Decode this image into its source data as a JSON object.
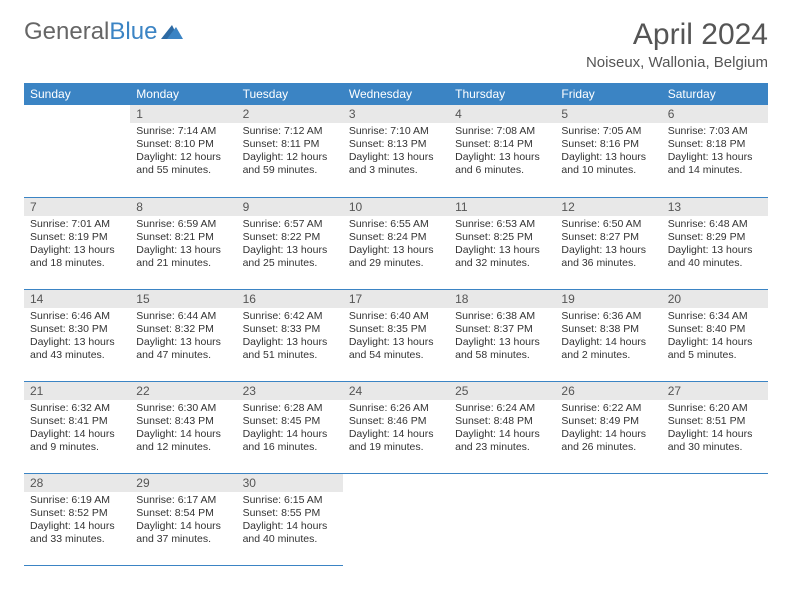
{
  "logo": {
    "general": "General",
    "blue": "Blue"
  },
  "title": "April 2024",
  "location": "Noiseux, Wallonia, Belgium",
  "colors": {
    "header_bg": "#3b84c4",
    "header_fg": "#ffffff",
    "daynum_bg": "#e8e8e8",
    "border": "#3b84c4",
    "text": "#333333",
    "title": "#555555"
  },
  "weekdays": [
    "Sunday",
    "Monday",
    "Tuesday",
    "Wednesday",
    "Thursday",
    "Friday",
    "Saturday"
  ],
  "days": {
    "1": {
      "sunrise": "7:14 AM",
      "sunset": "8:10 PM",
      "daylight": "12 hours and 55 minutes."
    },
    "2": {
      "sunrise": "7:12 AM",
      "sunset": "8:11 PM",
      "daylight": "12 hours and 59 minutes."
    },
    "3": {
      "sunrise": "7:10 AM",
      "sunset": "8:13 PM",
      "daylight": "13 hours and 3 minutes."
    },
    "4": {
      "sunrise": "7:08 AM",
      "sunset": "8:14 PM",
      "daylight": "13 hours and 6 minutes."
    },
    "5": {
      "sunrise": "7:05 AM",
      "sunset": "8:16 PM",
      "daylight": "13 hours and 10 minutes."
    },
    "6": {
      "sunrise": "7:03 AM",
      "sunset": "8:18 PM",
      "daylight": "13 hours and 14 minutes."
    },
    "7": {
      "sunrise": "7:01 AM",
      "sunset": "8:19 PM",
      "daylight": "13 hours and 18 minutes."
    },
    "8": {
      "sunrise": "6:59 AM",
      "sunset": "8:21 PM",
      "daylight": "13 hours and 21 minutes."
    },
    "9": {
      "sunrise": "6:57 AM",
      "sunset": "8:22 PM",
      "daylight": "13 hours and 25 minutes."
    },
    "10": {
      "sunrise": "6:55 AM",
      "sunset": "8:24 PM",
      "daylight": "13 hours and 29 minutes."
    },
    "11": {
      "sunrise": "6:53 AM",
      "sunset": "8:25 PM",
      "daylight": "13 hours and 32 minutes."
    },
    "12": {
      "sunrise": "6:50 AM",
      "sunset": "8:27 PM",
      "daylight": "13 hours and 36 minutes."
    },
    "13": {
      "sunrise": "6:48 AM",
      "sunset": "8:29 PM",
      "daylight": "13 hours and 40 minutes."
    },
    "14": {
      "sunrise": "6:46 AM",
      "sunset": "8:30 PM",
      "daylight": "13 hours and 43 minutes."
    },
    "15": {
      "sunrise": "6:44 AM",
      "sunset": "8:32 PM",
      "daylight": "13 hours and 47 minutes."
    },
    "16": {
      "sunrise": "6:42 AM",
      "sunset": "8:33 PM",
      "daylight": "13 hours and 51 minutes."
    },
    "17": {
      "sunrise": "6:40 AM",
      "sunset": "8:35 PM",
      "daylight": "13 hours and 54 minutes."
    },
    "18": {
      "sunrise": "6:38 AM",
      "sunset": "8:37 PM",
      "daylight": "13 hours and 58 minutes."
    },
    "19": {
      "sunrise": "6:36 AM",
      "sunset": "8:38 PM",
      "daylight": "14 hours and 2 minutes."
    },
    "20": {
      "sunrise": "6:34 AM",
      "sunset": "8:40 PM",
      "daylight": "14 hours and 5 minutes."
    },
    "21": {
      "sunrise": "6:32 AM",
      "sunset": "8:41 PM",
      "daylight": "14 hours and 9 minutes."
    },
    "22": {
      "sunrise": "6:30 AM",
      "sunset": "8:43 PM",
      "daylight": "14 hours and 12 minutes."
    },
    "23": {
      "sunrise": "6:28 AM",
      "sunset": "8:45 PM",
      "daylight": "14 hours and 16 minutes."
    },
    "24": {
      "sunrise": "6:26 AM",
      "sunset": "8:46 PM",
      "daylight": "14 hours and 19 minutes."
    },
    "25": {
      "sunrise": "6:24 AM",
      "sunset": "8:48 PM",
      "daylight": "14 hours and 23 minutes."
    },
    "26": {
      "sunrise": "6:22 AM",
      "sunset": "8:49 PM",
      "daylight": "14 hours and 26 minutes."
    },
    "27": {
      "sunrise": "6:20 AM",
      "sunset": "8:51 PM",
      "daylight": "14 hours and 30 minutes."
    },
    "28": {
      "sunrise": "6:19 AM",
      "sunset": "8:52 PM",
      "daylight": "14 hours and 33 minutes."
    },
    "29": {
      "sunrise": "6:17 AM",
      "sunset": "8:54 PM",
      "daylight": "14 hours and 37 minutes."
    },
    "30": {
      "sunrise": "6:15 AM",
      "sunset": "8:55 PM",
      "daylight": "14 hours and 40 minutes."
    }
  },
  "labels": {
    "sunrise": "Sunrise:",
    "sunset": "Sunset:",
    "daylight": "Daylight:"
  },
  "grid": {
    "start_weekday": 1,
    "num_days": 30,
    "rows": 5,
    "cols": 7
  }
}
